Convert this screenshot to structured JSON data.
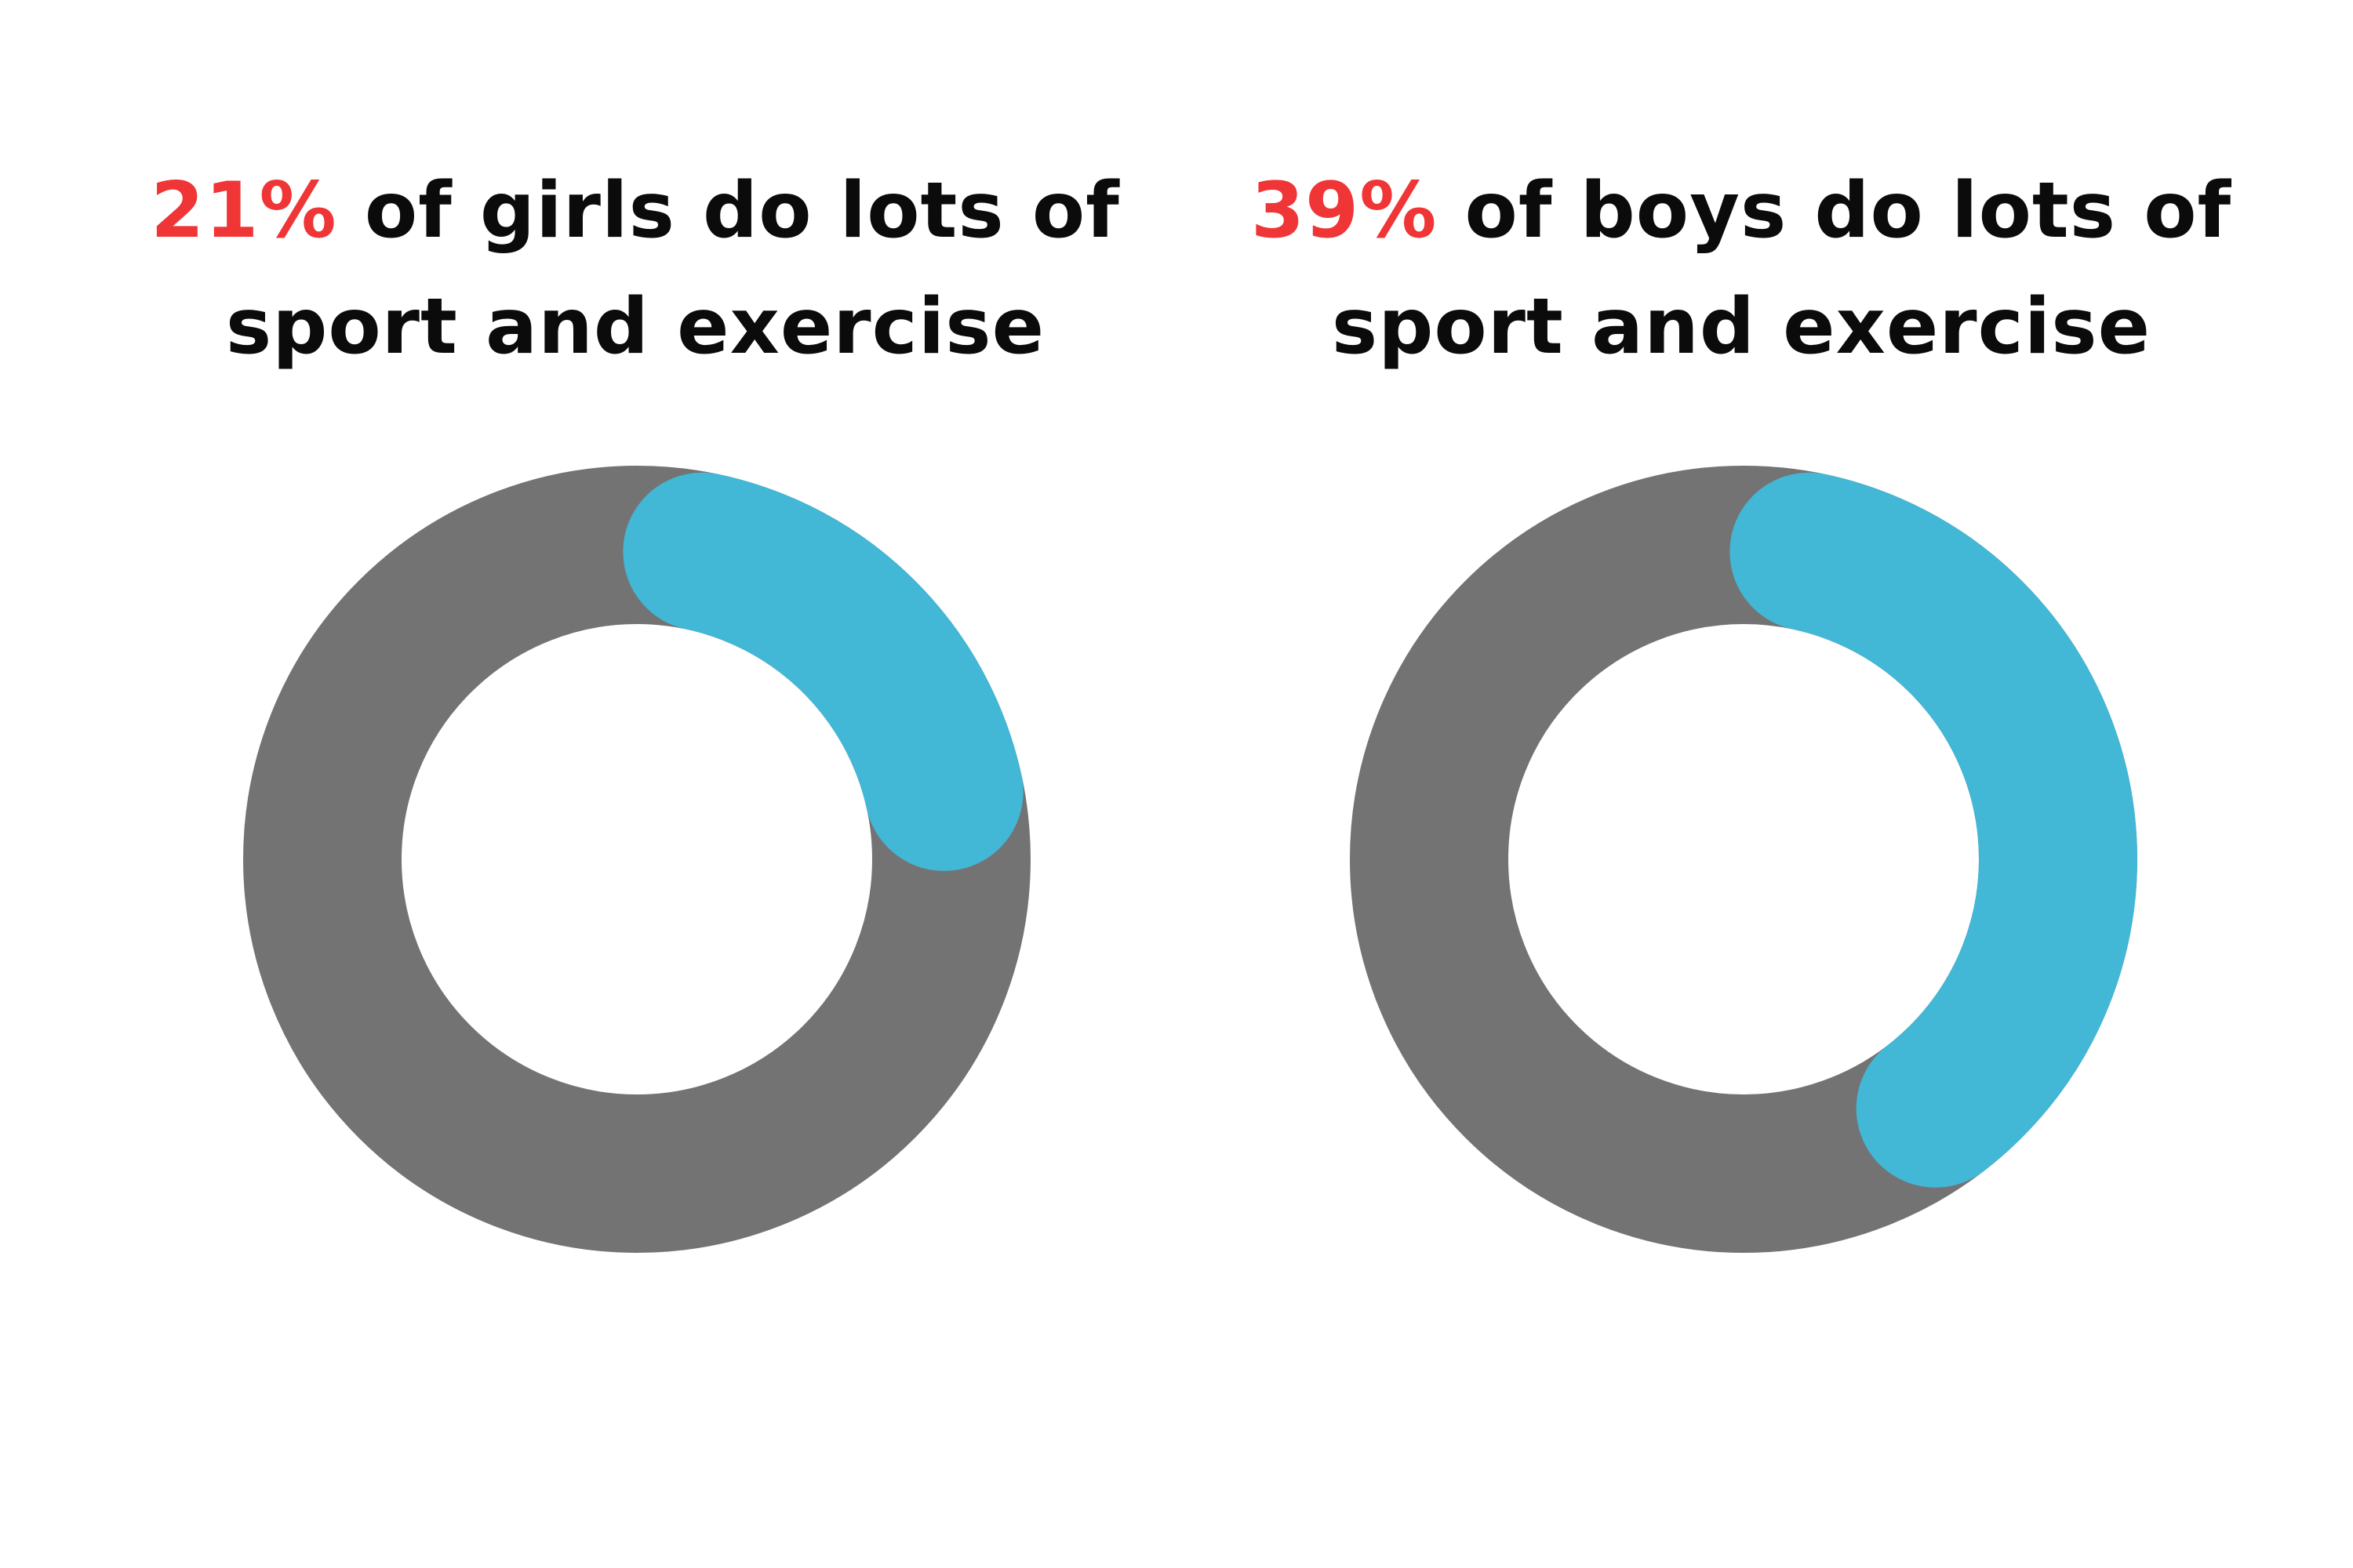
{
  "chart_data": [
    {
      "type": "donut",
      "title_highlight": "21%",
      "title_line1_rest": " of girls do lots of",
      "title_line2": "sport and exercise",
      "value": 21,
      "max": 100,
      "colors": {
        "filled": "#42b7d6",
        "track": "#737373",
        "highlight_text": "#ef3535",
        "text": "#0b0b0b"
      }
    },
    {
      "type": "donut",
      "title_highlight": "39%",
      "title_line1_rest": " of boys do lots of",
      "title_line2": "sport and exercise",
      "value": 39,
      "max": 100,
      "colors": {
        "filled": "#42b7d6",
        "track": "#737373",
        "highlight_text": "#ef3535",
        "text": "#0b0b0b"
      }
    }
  ]
}
